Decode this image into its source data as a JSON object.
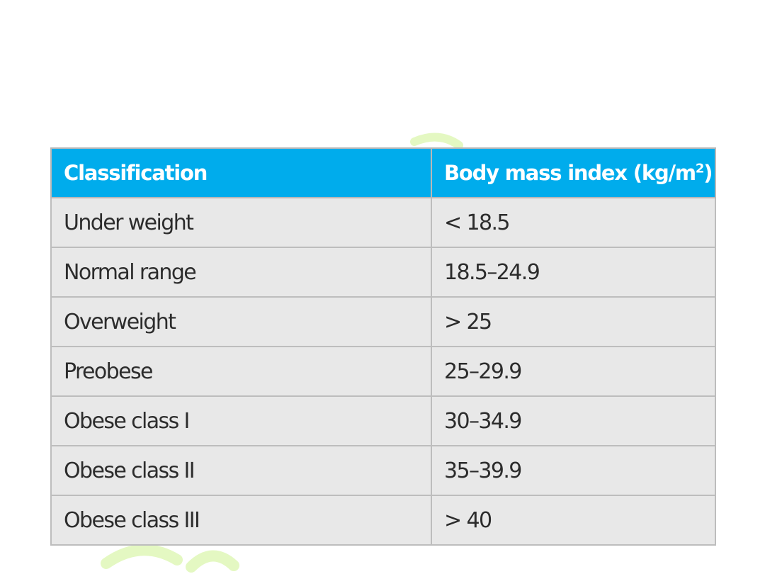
{
  "table": {
    "headers": {
      "classification": "Classification",
      "bmi_text": "Body mass index (kg/m",
      "bmi_sup": "2",
      "bmi_close": ")"
    },
    "rows": [
      {
        "classification": "Under weight",
        "bmi": "< 18.5"
      },
      {
        "classification": "Normal range",
        "bmi": "18.5–24.9"
      },
      {
        "classification": "Overweight",
        "bmi": "> 25"
      },
      {
        "classification": "Preobese",
        "bmi": "25–29.9"
      },
      {
        "classification": "Obese class I",
        "bmi": "30–34.9"
      },
      {
        "classification": "Obese class II",
        "bmi": "35–39.9"
      },
      {
        "classification": "Obese class III",
        "bmi": "> 40"
      }
    ]
  },
  "colors": {
    "header_bg": "#00acec",
    "row_bg": "#e8e8e8",
    "watermark": "#d8f5a8"
  }
}
